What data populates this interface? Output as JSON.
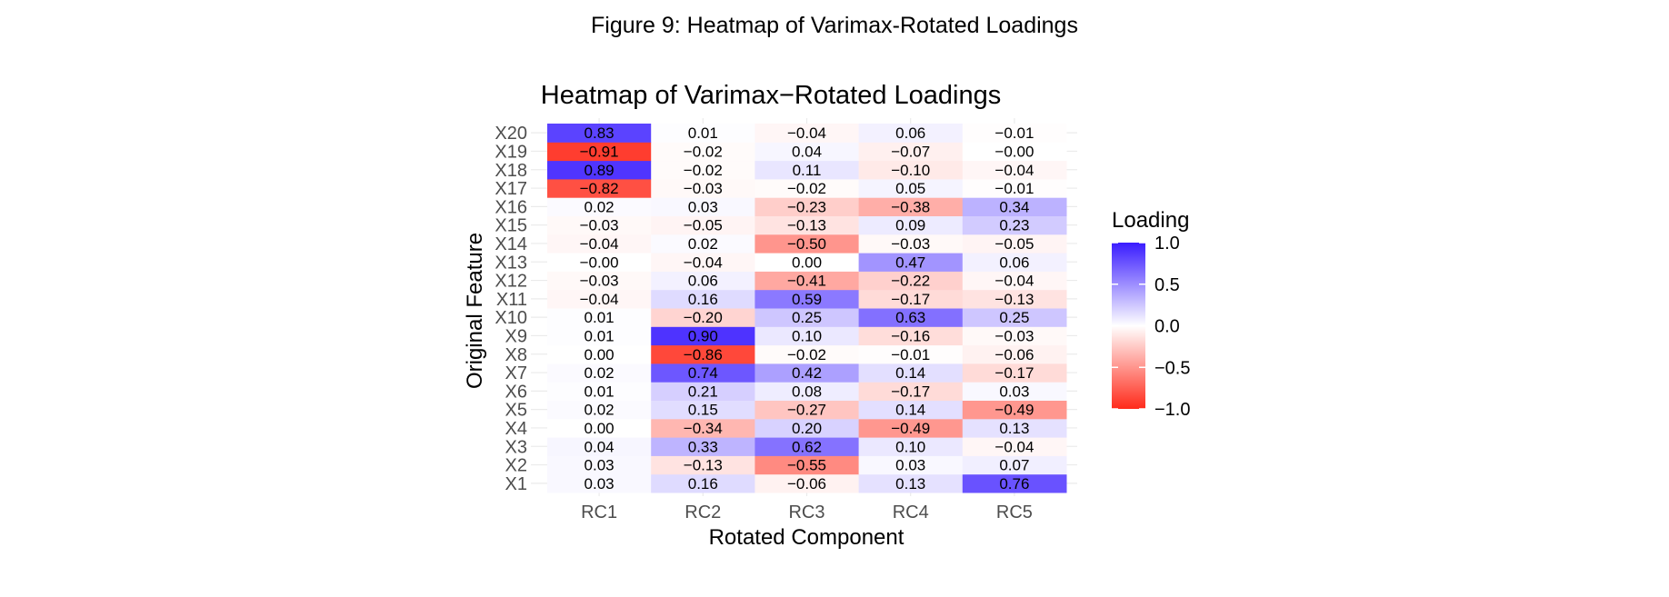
{
  "figure_caption": "Figure 9: Heatmap of Varimax-Rotated Loadings",
  "colors": {
    "low": "#ff2a1a",
    "mid": "#ffffff",
    "high": "#3a1cff",
    "grid": "#ebebeb",
    "tick_text": "#4d4d4d"
  },
  "chart_data": {
    "type": "heatmap",
    "title": "Heatmap of Varimax−Rotated Loadings",
    "xlabel": "Rotated Component",
    "ylabel": "Original Feature",
    "x_categories": [
      "RC1",
      "RC2",
      "RC3",
      "RC4",
      "RC5"
    ],
    "y_categories": [
      "X1",
      "X2",
      "X3",
      "X4",
      "X5",
      "X6",
      "X7",
      "X8",
      "X9",
      "X10",
      "X11",
      "X12",
      "X13",
      "X14",
      "X15",
      "X16",
      "X17",
      "X18",
      "X19",
      "X20"
    ],
    "values": [
      [
        0.03,
        0.16,
        -0.06,
        0.13,
        0.76
      ],
      [
        0.03,
        -0.13,
        -0.55,
        0.03,
        0.07
      ],
      [
        0.04,
        0.33,
        0.62,
        0.1,
        -0.04
      ],
      [
        0.0,
        -0.34,
        0.2,
        -0.49,
        0.13
      ],
      [
        0.02,
        0.15,
        -0.27,
        0.14,
        -0.49
      ],
      [
        0.01,
        0.21,
        0.08,
        -0.17,
        0.03
      ],
      [
        0.02,
        0.74,
        0.42,
        0.14,
        -0.17
      ],
      [
        0.0,
        -0.86,
        -0.02,
        -0.01,
        -0.06
      ],
      [
        0.01,
        0.9,
        0.1,
        -0.16,
        -0.03
      ],
      [
        0.01,
        -0.2,
        0.25,
        0.63,
        0.25
      ],
      [
        -0.04,
        0.16,
        0.59,
        -0.17,
        -0.13
      ],
      [
        -0.03,
        0.06,
        -0.41,
        -0.22,
        -0.04
      ],
      [
        -0.0,
        -0.04,
        0.0,
        0.47,
        0.06
      ],
      [
        -0.04,
        0.02,
        -0.5,
        -0.03,
        -0.05
      ],
      [
        -0.03,
        -0.05,
        -0.13,
        0.09,
        0.23
      ],
      [
        0.02,
        0.03,
        -0.23,
        -0.38,
        0.34
      ],
      [
        -0.82,
        -0.03,
        -0.02,
        0.05,
        -0.01
      ],
      [
        0.89,
        -0.02,
        0.11,
        -0.1,
        -0.04
      ],
      [
        -0.91,
        -0.02,
        0.04,
        -0.07,
        -0.0
      ],
      [
        0.83,
        0.01,
        -0.04,
        0.06,
        -0.01
      ]
    ],
    "value_range": [
      -1.0,
      1.0
    ],
    "legend": {
      "title": "Loading",
      "placement": "right",
      "ticks": [
        1.0,
        0.5,
        0.0,
        -0.5,
        -1.0
      ],
      "tick_labels": [
        "1.0",
        "0.5",
        "0.0",
        "−0.5",
        "−1.0"
      ]
    }
  }
}
